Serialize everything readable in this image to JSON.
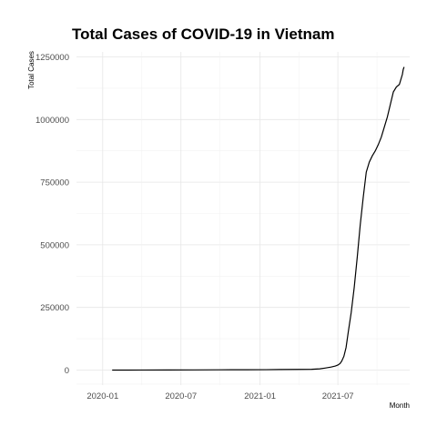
{
  "chart_data": {
    "type": "line",
    "title": "Total Cases of COVID-19 in Vietnam",
    "xlabel": "Month",
    "ylabel": "Total Cases",
    "x_ticks": [
      "2020-01",
      "2020-07",
      "2021-01",
      "2021-07"
    ],
    "y_ticks": [
      "0",
      "250000",
      "500000",
      "750000",
      "1000000",
      "1250000"
    ],
    "xlim": [
      "2019-11-01",
      "2021-12-15"
    ],
    "ylim": [
      -60000,
      1270000
    ],
    "grid": true,
    "series": [
      {
        "name": "Total Cases",
        "x": [
          "2020-01-23",
          "2020-03-01",
          "2020-04-01",
          "2020-06-01",
          "2020-08-01",
          "2020-10-01",
          "2020-12-01",
          "2021-01-15",
          "2021-02-15",
          "2021-04-01",
          "2021-05-01",
          "2021-05-20",
          "2021-06-01",
          "2021-06-15",
          "2021-06-25",
          "2021-07-01",
          "2021-07-06",
          "2021-07-10",
          "2021-07-15",
          "2021-07-20",
          "2021-07-25",
          "2021-08-01",
          "2021-08-08",
          "2021-08-15",
          "2021-08-22",
          "2021-08-29",
          "2021-09-05",
          "2021-09-12",
          "2021-09-19",
          "2021-09-26",
          "2021-10-03",
          "2021-10-10",
          "2021-10-17",
          "2021-10-24",
          "2021-10-31",
          "2021-11-07",
          "2021-11-14",
          "2021-11-21",
          "2021-11-28",
          "2021-11-30",
          "2021-12-02"
        ],
        "y": [
          0,
          20,
          200,
          350,
          700,
          1100,
          1400,
          1550,
          2300,
          2700,
          3100,
          5000,
          8000,
          12000,
          16000,
          20000,
          26000,
          36000,
          55000,
          90000,
          150000,
          230000,
          330000,
          450000,
          580000,
          690000,
          790000,
          830000,
          855000,
          875000,
          900000,
          930000,
          970000,
          1010000,
          1060000,
          1110000,
          1130000,
          1140000,
          1180000,
          1200000,
          1210000
        ]
      }
    ]
  }
}
